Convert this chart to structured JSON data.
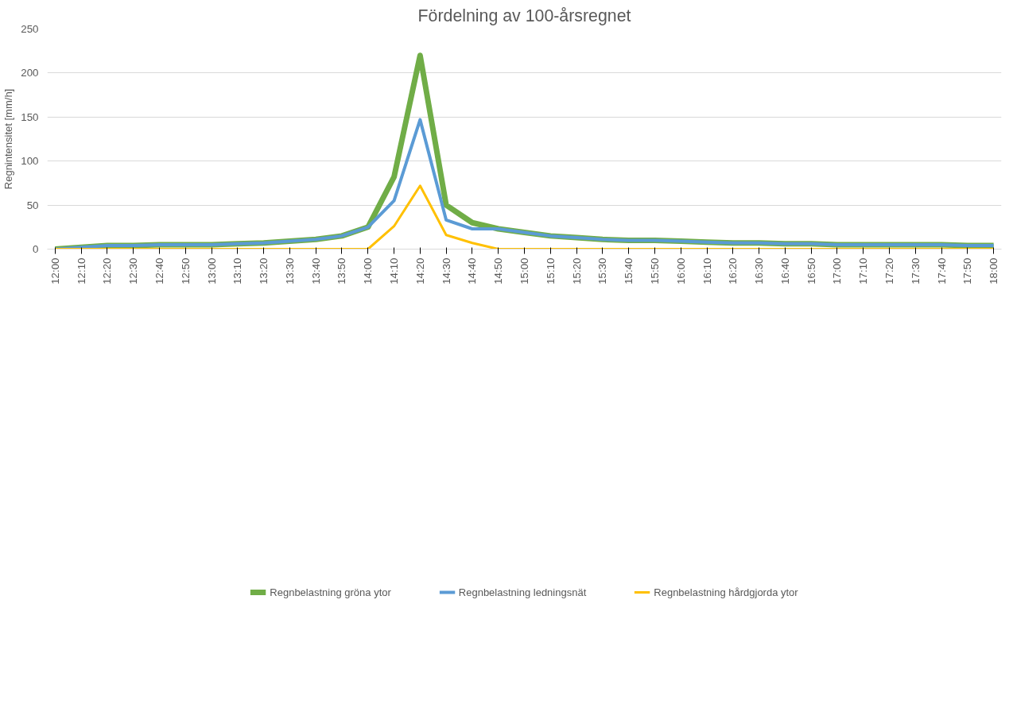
{
  "chart_data": {
    "type": "line",
    "title": "Fördelning av 100-årsregnet",
    "ylabel": "Regnintensitet [mm/h]",
    "categories": [
      "12:00",
      "12:10",
      "12:20",
      "12:30",
      "12:40",
      "12:50",
      "13:00",
      "13:10",
      "13:20",
      "13:30",
      "13:40",
      "13:50",
      "14:00",
      "14:10",
      "14:20",
      "14:30",
      "14:40",
      "14:50",
      "15:00",
      "15:10",
      "15:20",
      "15:30",
      "15:40",
      "15:50",
      "16:00",
      "16:10",
      "16:20",
      "16:30",
      "16:40",
      "16:50",
      "17:00",
      "17:10",
      "17:20",
      "17:30",
      "17:40",
      "17:50",
      "18:00"
    ],
    "series": [
      {
        "name": "Regnbelastning gröna ytor",
        "color": "#70ad47",
        "values": [
          0,
          2,
          4,
          4,
          5,
          5,
          5,
          6,
          7,
          9,
          11,
          15,
          25,
          82,
          220,
          50,
          30,
          23,
          19,
          15,
          13,
          11,
          10,
          10,
          9,
          8,
          7,
          7,
          6,
          6,
          5,
          5,
          5,
          5,
          5,
          4,
          4
        ]
      },
      {
        "name": "Regnbelastning ledningsnät",
        "color": "#5b9bd5",
        "values": [
          0,
          2,
          4,
          4,
          5,
          5,
          5,
          6,
          7,
          9,
          11,
          15,
          25,
          55,
          147,
          33,
          23,
          23,
          19,
          15,
          13,
          11,
          10,
          10,
          9,
          8,
          7,
          7,
          6,
          6,
          5,
          5,
          5,
          5,
          5,
          4,
          4
        ]
      },
      {
        "name": "Regnbelastning hårdgjorda ytor",
        "color": "#ffc000",
        "values": [
          0,
          0,
          0,
          0,
          0,
          0,
          0,
          0,
          0,
          0,
          0,
          0,
          0,
          26,
          72,
          16,
          7,
          0,
          0,
          0,
          0,
          0,
          0,
          0,
          0,
          0,
          0,
          0,
          0,
          0,
          0,
          0,
          0,
          0,
          0,
          0,
          0
        ]
      }
    ],
    "ylim": [
      0,
      250
    ],
    "yticks": [
      0,
      50,
      100,
      150,
      200,
      250
    ],
    "grid": "y",
    "legend": "bottom",
    "line_style": "solid",
    "marker": "none"
  }
}
